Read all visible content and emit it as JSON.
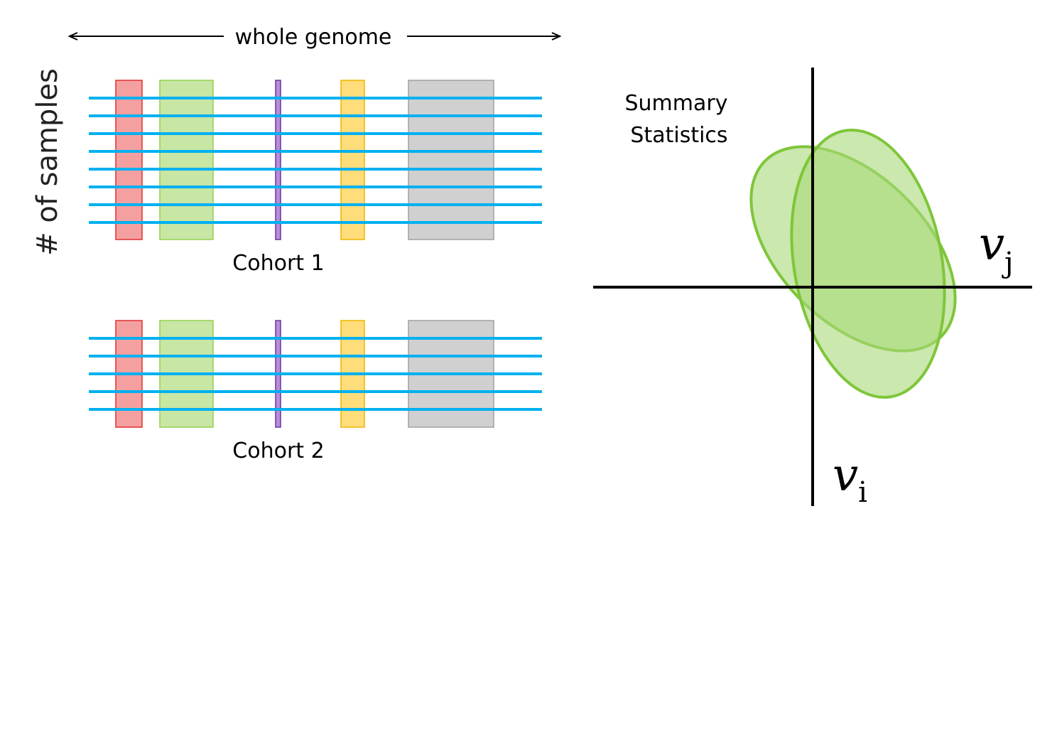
{
  "genome_label": "whole genome",
  "samples_label": "# of samples",
  "summary_label_line1": "Summary",
  "summary_label_line2": "Statistics",
  "axis_x_symbol": "v",
  "axis_x_subscript": "j",
  "axis_y_symbol": "v",
  "axis_y_subscript": "i",
  "colors": {
    "sample_line": "#00b0f0",
    "region_red_fill": "#f4a0a0",
    "region_red_stroke": "#e03030",
    "region_green_fill": "#c8e6a4",
    "region_green_stroke": "#92d050",
    "region_purple_fill": "#b48fd8",
    "region_purple_stroke": "#7030a0",
    "region_yellow_fill": "#ffdd7a",
    "region_yellow_stroke": "#f0b400",
    "region_gray_fill": "#d0d0d0",
    "region_gray_stroke": "#a0a0a0",
    "ellipse_fill": "#a8d878",
    "ellipse_stroke": "#7ec63a",
    "axis": "#000000"
  },
  "cohorts": [
    {
      "label": "Cohort 1",
      "sample_count": 8
    },
    {
      "label": "Cohort 2",
      "sample_count": 5
    }
  ]
}
